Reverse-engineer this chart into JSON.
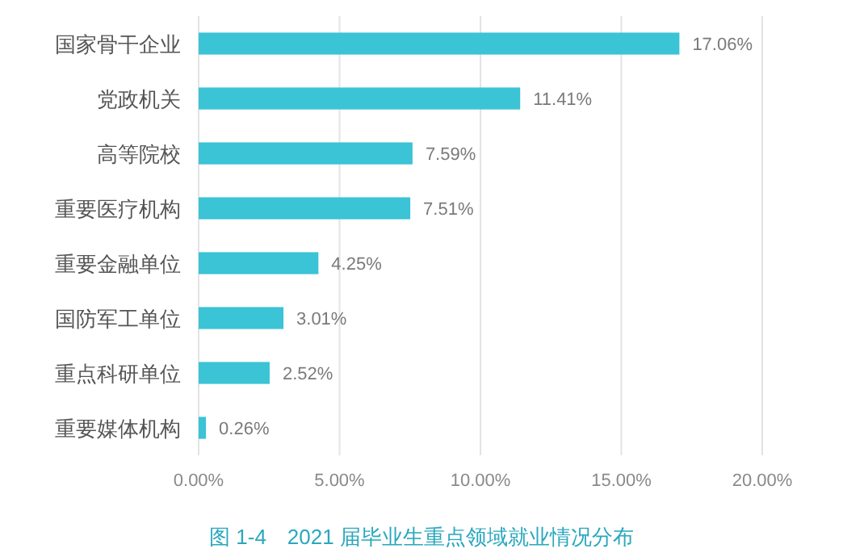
{
  "chart_data": {
    "type": "bar",
    "orientation": "horizontal",
    "title": "图 1-4　2021 届毕业生重点领域就业情况分布",
    "categories": [
      "国家骨干企业",
      "党政机关",
      "高等院校",
      "重要医疗机构",
      "重要金融单位",
      "国防军工单位",
      "重点科研单位",
      "重要媒体机构"
    ],
    "values": [
      17.06,
      11.41,
      7.59,
      7.51,
      4.25,
      3.01,
      2.52,
      0.26
    ],
    "value_labels": [
      "17.06%",
      "11.41%",
      "7.59%",
      "7.51%",
      "4.25%",
      "3.01%",
      "2.52%",
      "0.26%"
    ],
    "color": "#3bc3d6",
    "xlim": [
      0,
      20
    ],
    "xticks": [
      {
        "value": 0,
        "label": "0.00%"
      },
      {
        "value": 5,
        "label": "5.00%"
      },
      {
        "value": 10,
        "label": "10.00%"
      },
      {
        "value": 15,
        "label": "15.00%"
      },
      {
        "value": 20,
        "label": "20.00%"
      }
    ],
    "grid": "x"
  }
}
